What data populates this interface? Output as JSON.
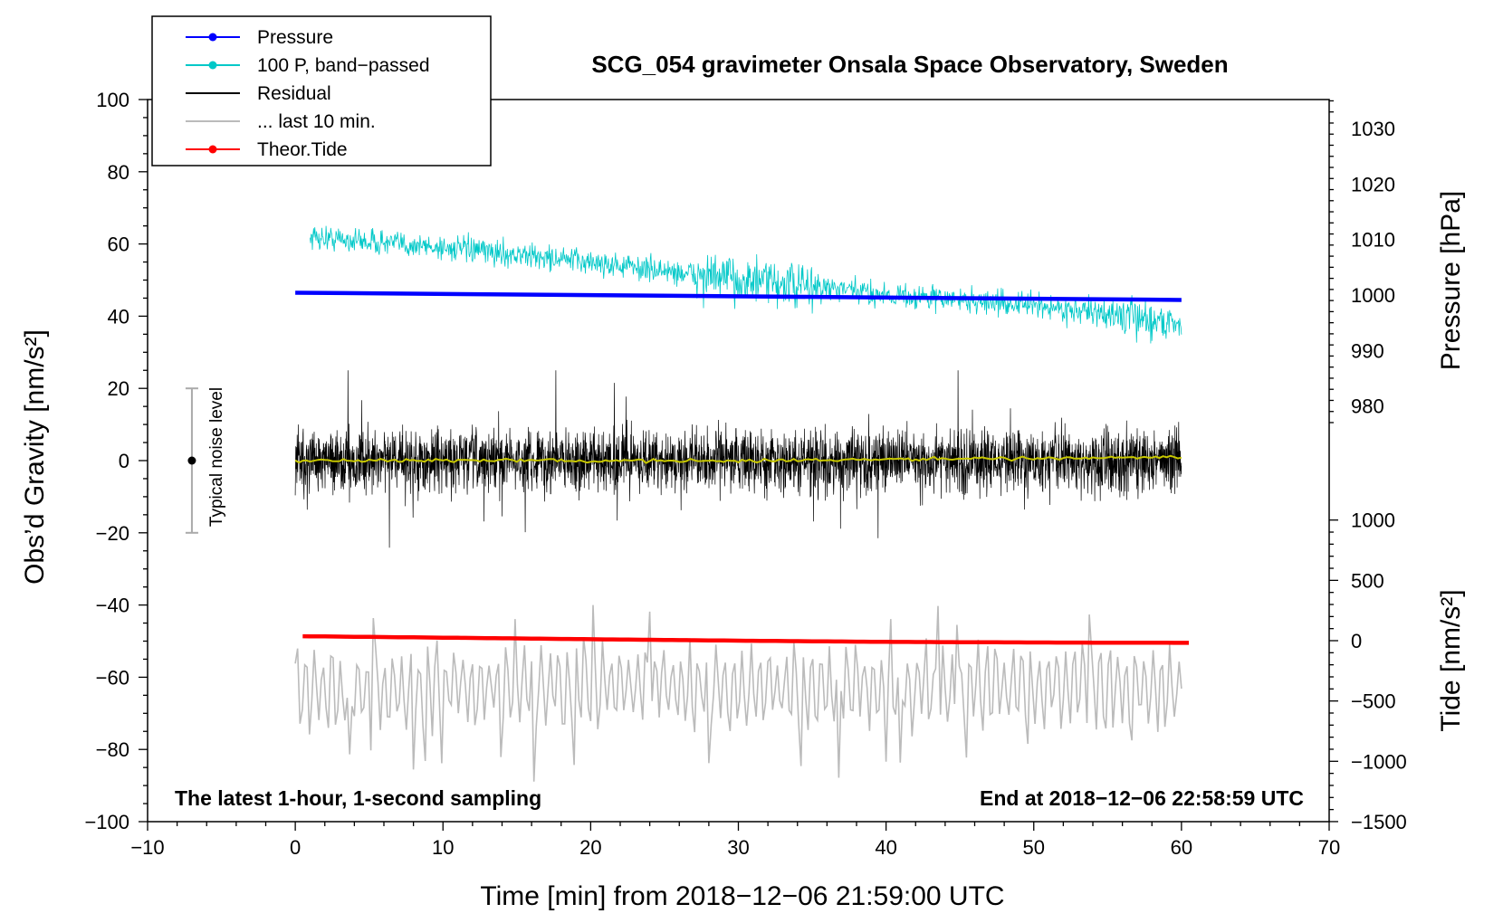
{
  "chart_data": {
    "type": "line",
    "title": "SCG_054 gravimeter Onsala Space Observatory, Sweden",
    "xlabel": "Time [min] from 2018−12−06 21:59:00 UTC",
    "ylabel_left": "Obs’d Gravity [nm/s²]",
    "ylabel_right_top": "Pressure [hPa]",
    "ylabel_right_bottom": "Tide [nm/s²]",
    "xlim": [
      -10,
      70
    ],
    "ylim_left": [
      -100,
      100
    ],
    "pressure_axis_ticks": [
      980,
      990,
      1000,
      1010,
      1020,
      1030
    ],
    "tide_axis_ticks": [
      -1500,
      -1000,
      -500,
      0,
      500,
      1000
    ],
    "x_ticks": [
      "−10",
      "0",
      "10",
      "20",
      "30",
      "40",
      "50",
      "60",
      "70"
    ],
    "y_ticks_left": [
      "−100",
      "−80",
      "−60",
      "−40",
      "−20",
      "0",
      "20",
      "40",
      "60",
      "80",
      "100"
    ],
    "y_ticks_pressure": [
      "980",
      "990",
      "1000",
      "1010",
      "1020",
      "1030"
    ],
    "y_ticks_tide": [
      "−1500",
      "−1000",
      "−500",
      "0",
      "500",
      "1000"
    ],
    "note_left": "The latest 1-hour, 1-second sampling",
    "note_right": "End at 2018−12−06 22:58:59 UTC",
    "noise_bar": {
      "label": "Typical noise level",
      "x": -7,
      "center": 0,
      "half_range": 20
    },
    "legend": [
      {
        "label": "Pressure",
        "color": "#0000ff",
        "marker": true
      },
      {
        "label": "100 P, band−passed",
        "color": "#00c8c8",
        "marker": true
      },
      {
        "label": "Residual",
        "color": "#000000",
        "marker": false
      },
      {
        "label": "... last 10 min.",
        "color": "#bbbbbb",
        "marker": false
      },
      {
        "label": "Theor.Tide",
        "color": "#ff0000",
        "marker": true
      }
    ],
    "series": [
      {
        "name": "Pressure",
        "color": "#0000ff",
        "axis": "left",
        "x": [
          0,
          60
        ],
        "values": [
          46.5,
          44.5
        ]
      },
      {
        "name": "100 P, band-passed",
        "color": "#00c8c8",
        "axis": "left",
        "x": [
          1,
          10,
          20,
          30,
          40,
          50,
          60
        ],
        "values": [
          62,
          59,
          55,
          50,
          46,
          43,
          38
        ],
        "noise_amplitude": 2.5
      },
      {
        "name": "Residual",
        "color": "#000000",
        "axis": "left",
        "x": [
          0,
          60
        ],
        "values": [
          0,
          0
        ],
        "noise_amplitude": 9,
        "range": [
          -29,
          25
        ]
      },
      {
        "name": "Residual smoothed",
        "color": "#c8c800",
        "axis": "left",
        "x": [
          0,
          30,
          60
        ],
        "values": [
          0,
          0,
          1
        ]
      },
      {
        "name": "... last 10 min.",
        "color": "#bbbbbb",
        "axis": "left",
        "x": [
          0,
          60
        ],
        "values": [
          -63,
          -63
        ],
        "range": [
          -91,
          -40
        ]
      },
      {
        "name": "Theor.Tide",
        "color": "#ff0000",
        "axis": "tide",
        "x": [
          0.5,
          10,
          20,
          30,
          40,
          50,
          60.5
        ],
        "values": [
          37,
          25,
          12,
          0,
          -10,
          -15,
          -18
        ]
      }
    ]
  }
}
